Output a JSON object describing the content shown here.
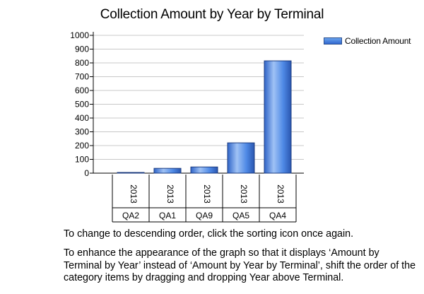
{
  "chart_data": {
    "type": "bar",
    "title": "Collection Amount by Year by Terminal",
    "ylim": [
      0,
      1000
    ],
    "yticks": [
      "0",
      "100",
      "200",
      "300",
      "400",
      "500",
      "600",
      "700",
      "800",
      "900",
      "1000"
    ],
    "categories": [
      {
        "year": "2013",
        "terminal": "QA2"
      },
      {
        "year": "2013",
        "terminal": "QA1"
      },
      {
        "year": "2013",
        "terminal": "QA9"
      },
      {
        "year": "2013",
        "terminal": "QA5"
      },
      {
        "year": "2013",
        "terminal": "QA4"
      }
    ],
    "series": [
      {
        "name": "Collection Amount",
        "values": [
          5,
          35,
          45,
          220,
          815
        ],
        "color": "#3f7fe0"
      }
    ],
    "grid": true,
    "legend_position": "top-right"
  },
  "text": {
    "para1": "To change to descending order, click the sorting icon once again.",
    "para2": "To enhance the appearance of the graph so that it displays ‘Amount by Terminal by Year’ instead of ‘Amount by Year by Terminal’, shift the order of the category items by dragging and dropping Year above Terminal."
  }
}
